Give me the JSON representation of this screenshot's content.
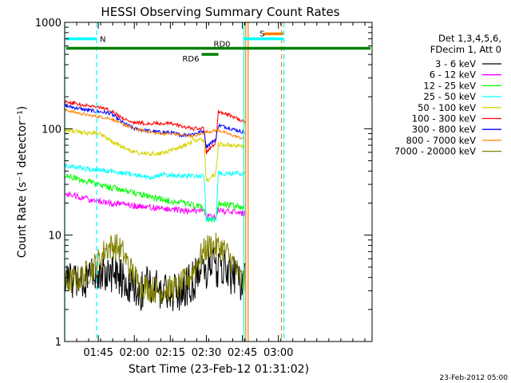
{
  "chart_data": {
    "type": "line",
    "title": "HESSI Observing Summary Count Rates",
    "xlabel": "Start Time (23-Feb-12 01:31:02)",
    "ylabel": "Count Rate (s⁻¹ detector⁻¹)",
    "y_scale": "log",
    "ylim": [
      1,
      1000
    ],
    "xlim": [
      91,
      219
    ],
    "x_unit": "minutes after 00:00 UT",
    "x_ticks": [
      {
        "value": 105,
        "label": "01:45"
      },
      {
        "value": 120,
        "label": "02:00"
      },
      {
        "value": 135,
        "label": "02:15"
      },
      {
        "value": 150,
        "label": "02:30"
      },
      {
        "value": 165,
        "label": "02:45"
      },
      {
        "value": 180,
        "label": "03:00"
      }
    ],
    "y_ticks": [
      {
        "value": 1,
        "label": "1"
      },
      {
        "value": 10,
        "label": "10"
      },
      {
        "value": 100,
        "label": "100"
      },
      {
        "value": 1000,
        "label": "1000"
      }
    ],
    "legend": {
      "position": "right",
      "header": [
        "Det 1,3,4,5,6,",
        "FDecim 1, Att 0"
      ]
    },
    "series": [
      {
        "name": "3 - 6 keV",
        "color": "#000000",
        "noise": 0.45,
        "x": [
          91,
          100,
          103,
          108,
          112,
          118,
          123,
          127,
          130,
          135,
          140,
          148,
          152,
          156,
          162,
          166
        ],
        "y": [
          3.5,
          4,
          4.5,
          4.5,
          4.5,
          3.5,
          3,
          3.5,
          3,
          2.8,
          3,
          4.5,
          5,
          5,
          4,
          3.5
        ]
      },
      {
        "name": "6 - 12 keV",
        "color": "#ff00ff",
        "noise": 0.07,
        "x": [
          91,
          100,
          110,
          120,
          130,
          140,
          149,
          150,
          154,
          155,
          160,
          166
        ],
        "y": [
          25,
          22,
          20,
          19,
          18,
          17,
          17,
          15,
          15,
          17,
          16.5,
          16
        ]
      },
      {
        "name": "12 - 25 keV",
        "color": "#00ff00",
        "noise": 0.07,
        "x": [
          91,
          100,
          110,
          120,
          130,
          140,
          149,
          150,
          154,
          155,
          160,
          166
        ],
        "y": [
          37,
          32,
          28,
          25,
          22,
          20,
          18,
          14,
          14,
          20,
          19,
          18
        ]
      },
      {
        "name": "25 - 50 keV",
        "color": "#00ffff",
        "noise": 0.05,
        "x": [
          91,
          100,
          110,
          120,
          127,
          132,
          140,
          147,
          149,
          150,
          154,
          155,
          160,
          166
        ],
        "y": [
          45,
          42,
          40,
          37,
          35,
          37,
          36,
          36,
          36,
          14,
          14,
          38,
          38,
          38
        ]
      },
      {
        "name": "50 - 100 keV",
        "color": "#d4d400",
        "noise": 0.05,
        "x": [
          91,
          100,
          105,
          110,
          115,
          120,
          125,
          130,
          135,
          140,
          145,
          149,
          150,
          154,
          155,
          160,
          166
        ],
        "y": [
          97,
          92,
          90,
          78,
          67,
          60,
          58,
          58,
          62,
          68,
          78,
          80,
          32,
          38,
          72,
          70,
          68
        ]
      },
      {
        "name": "100 - 300 keV",
        "color": "#ff0000",
        "noise": 0.04,
        "x": [
          91,
          100,
          105,
          110,
          115,
          120,
          125,
          130,
          135,
          140,
          145,
          149,
          150,
          154,
          155,
          158,
          166
        ],
        "y": [
          180,
          165,
          160,
          150,
          125,
          115,
          112,
          112,
          112,
          105,
          100,
          100,
          60,
          75,
          145,
          140,
          115
        ]
      },
      {
        "name": "300 - 800 keV",
        "color": "#0000ff",
        "noise": 0.04,
        "x": [
          91,
          100,
          105,
          110,
          115,
          120,
          125,
          130,
          135,
          140,
          145,
          149,
          150,
          154,
          155,
          158,
          166
        ],
        "y": [
          165,
          150,
          145,
          140,
          115,
          100,
          96,
          93,
          92,
          87,
          90,
          95,
          68,
          80,
          108,
          104,
          92
        ]
      },
      {
        "name": "800 - 7000 keV",
        "color": "#ff8000",
        "noise": 0.03,
        "x": [
          91,
          100,
          105,
          110,
          115,
          120,
          125,
          130,
          135,
          140,
          145,
          150,
          155,
          160,
          166
        ],
        "y": [
          150,
          135,
          130,
          125,
          110,
          100,
          95,
          90,
          90,
          87,
          85,
          93,
          97,
          88,
          80
        ]
      },
      {
        "name": "7000 - 20000 keV",
        "color": "#808000",
        "noise": 0.3,
        "x": [
          91,
          98,
          103,
          106,
          108,
          112,
          115,
          118,
          122,
          126,
          130,
          138,
          143,
          147,
          150,
          152,
          157,
          160,
          164,
          166
        ],
        "y": [
          3.5,
          4,
          5,
          6,
          7.5,
          8,
          7,
          5,
          3.5,
          3.2,
          3,
          3.2,
          4,
          6,
          7.5,
          8,
          7.5,
          6,
          4,
          3.5
        ]
      }
    ],
    "annotations": [
      {
        "label": "N",
        "color": "#00ffff",
        "x_start": 91,
        "x_end": 104.3,
        "level": 700
      },
      {
        "label": "S",
        "color": "#ff8000",
        "x_start": 174,
        "x_end": 182,
        "level": 780
      },
      {
        "label": "",
        "color": "#00ffff",
        "x_start": 165.5,
        "x_end": 182,
        "level": 700
      },
      {
        "label": "RD0",
        "color": "#008000",
        "x_start": 91,
        "x_end": 219,
        "level": 570
      },
      {
        "label": "RD6",
        "color": "#008000",
        "x_start": 148,
        "x_end": 155,
        "level": 500
      }
    ],
    "vertical_markers": [
      {
        "x": 91,
        "color": "#00ffff",
        "style": "solid"
      },
      {
        "x": 104.3,
        "color": "#00ffff",
        "style": "dashed"
      },
      {
        "x": 165.6,
        "color": "#00ffff",
        "style": "solid"
      },
      {
        "x": 166.4,
        "color": "#ff8000",
        "style": "solid"
      },
      {
        "x": 167.4,
        "color": "#ff8000",
        "style": "solid"
      },
      {
        "x": 181.3,
        "color": "#ff8000",
        "style": "dashed"
      },
      {
        "x": 182.3,
        "color": "#00ffff",
        "style": "dashed"
      }
    ],
    "grid": false
  },
  "footer": {
    "timestamp": "23-Feb-2012 05:00"
  }
}
